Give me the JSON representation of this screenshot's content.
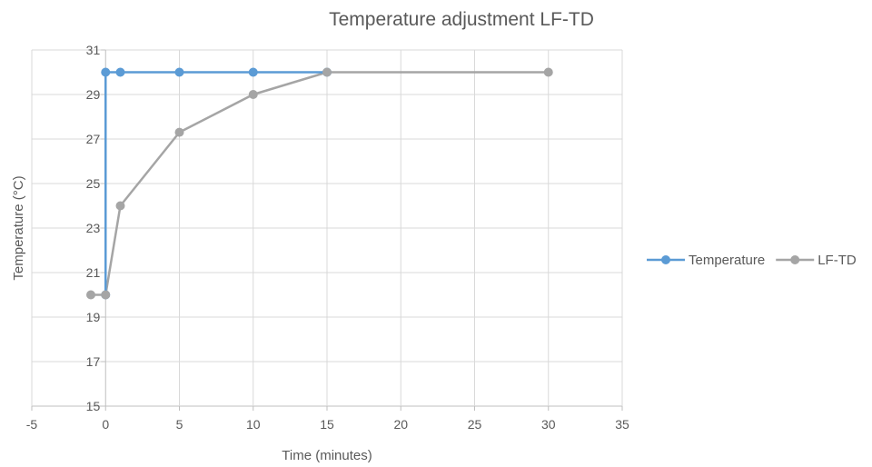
{
  "chart_data": {
    "type": "line",
    "title": "Temperature adjustment LF-TD",
    "xlabel": "Time (minutes)",
    "ylabel": "Temperature (°C)",
    "xlim": [
      -5,
      35
    ],
    "ylim": [
      15,
      31
    ],
    "xticks": [
      -5,
      0,
      5,
      10,
      15,
      20,
      25,
      30,
      35
    ],
    "yticks": [
      15,
      17,
      19,
      21,
      23,
      25,
      27,
      29,
      31
    ],
    "grid": true,
    "legend_position": "right",
    "series": [
      {
        "name": "Temperature",
        "color": "#5B9BD5",
        "x": [
          0,
          0,
          1,
          5,
          10,
          15
        ],
        "y": [
          20,
          30,
          30,
          30,
          30,
          30
        ]
      },
      {
        "name": "LF-TD",
        "color": "#A5A5A5",
        "x": [
          -1,
          0,
          1,
          5,
          10,
          15,
          30
        ],
        "y": [
          20,
          20,
          24,
          27.3,
          29,
          30,
          30
        ]
      }
    ]
  }
}
